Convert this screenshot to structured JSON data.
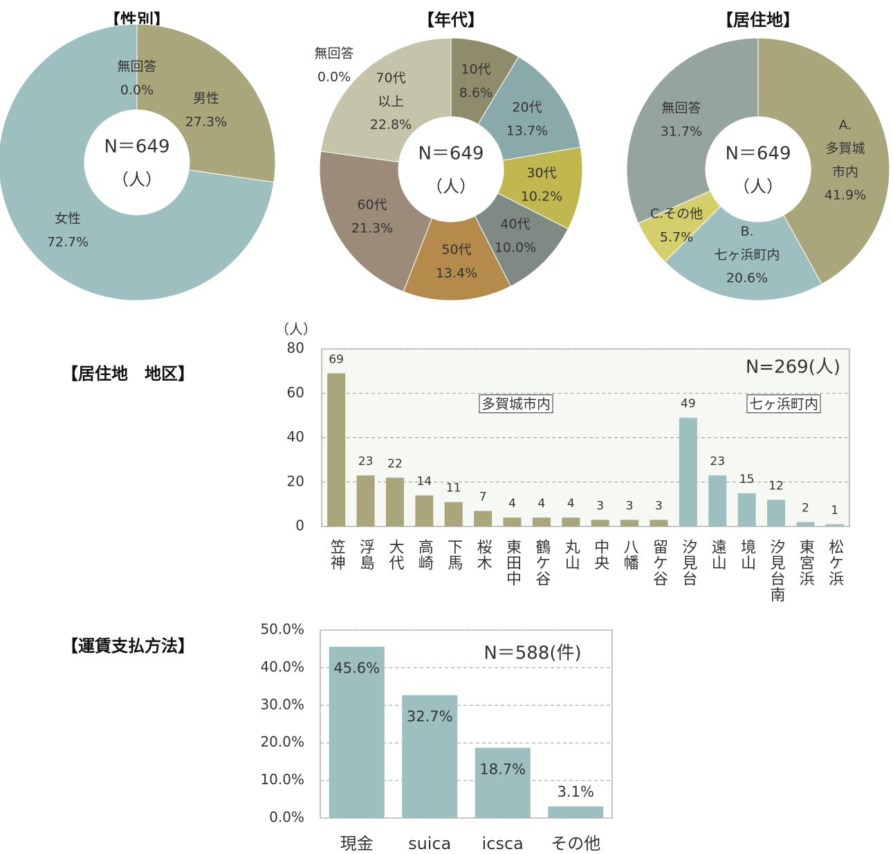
{
  "chart_data": [
    {
      "type": "donut",
      "title": "【性別】",
      "center_text": "N＝649",
      "center_unit": "（人）",
      "categories": [
        "無回答",
        "男性",
        "女性"
      ],
      "values": [
        0.0,
        27.3,
        72.7
      ],
      "value_labels": [
        "0.0%",
        "27.3%",
        "72.7%"
      ],
      "colors": [
        "#c4c3a9",
        "#aaa67c",
        "#9ebfbf"
      ]
    },
    {
      "type": "donut",
      "title": "【年代】",
      "center_text": "N＝649",
      "center_unit": "（人）",
      "categories": [
        "10代",
        "20代",
        "30代",
        "40代",
        "50代",
        "60代",
        "70代\n以上",
        "無回答"
      ],
      "values": [
        8.6,
        13.7,
        10.2,
        10.0,
        13.4,
        21.3,
        22.8,
        0.0
      ],
      "value_labels": [
        "8.6%",
        "13.7%",
        "10.2%",
        "10.0%",
        "13.4%",
        "21.3%",
        "22.8%",
        "0.0%"
      ],
      "colors": [
        "#8f8c6b",
        "#8aa9aa",
        "#c0b84f",
        "#7f8a84",
        "#b58b4c",
        "#9b8b78",
        "#c5c4aa",
        "#999999"
      ]
    },
    {
      "type": "donut",
      "title": "【居住地】",
      "center_text": "N＝649",
      "center_unit": "（人）",
      "categories": [
        "A.\n多賀城\n市内",
        "B.\n七ヶ浜町内",
        "C.その他",
        "無回答"
      ],
      "values": [
        41.9,
        20.6,
        5.7,
        31.7
      ],
      "value_labels": [
        "41.9%",
        "20.6%",
        "5.7%",
        "31.7%"
      ],
      "colors": [
        "#aaa67c",
        "#9ebfbf",
        "#d5cf6b",
        "#95a49d"
      ]
    },
    {
      "type": "bar",
      "title": "【居住地　地区】",
      "y_axis_label": "（人）",
      "annotation": "N=269(人)",
      "group_labels": [
        "多賀城市内",
        "七ヶ浜町内"
      ],
      "categories": [
        "笠神",
        "浮島",
        "大代",
        "高崎",
        "下馬",
        "桜木",
        "東田中",
        "鶴ケ谷",
        "丸山",
        "中央",
        "八幡",
        "留ケ谷",
        "汐見台",
        "遠山",
        "境山",
        "汐見台南",
        "東宮浜",
        "松ケ浜"
      ],
      "values": [
        69,
        23,
        22,
        14,
        11,
        7,
        4,
        4,
        4,
        3,
        3,
        3,
        49,
        23,
        15,
        12,
        2,
        1
      ],
      "colors": [
        "#aaa67c",
        "#aaa67c",
        "#aaa67c",
        "#aaa67c",
        "#aaa67c",
        "#aaa67c",
        "#aaa67c",
        "#aaa67c",
        "#aaa67c",
        "#aaa67c",
        "#aaa67c",
        "#aaa67c",
        "#9ebfbf",
        "#9ebfbf",
        "#9ebfbf",
        "#9ebfbf",
        "#9ebfbf",
        "#9ebfbf"
      ],
      "ylim": [
        0,
        80
      ],
      "yticks": [
        0,
        20,
        40,
        60,
        80
      ],
      "grid": true
    },
    {
      "type": "bar",
      "title": "【運賃支払方法】",
      "annotation": "N＝588(件)",
      "categories": [
        "現金",
        "suica",
        "icsca",
        "その他"
      ],
      "values": [
        45.6,
        32.7,
        18.7,
        3.1
      ],
      "value_labels": [
        "45.6%",
        "32.7%",
        "18.7%",
        "3.1%"
      ],
      "colors": [
        "#9ebfbf",
        "#9ebfbf",
        "#9ebfbf",
        "#9ebfbf"
      ],
      "ylim": [
        0,
        50
      ],
      "yticks": [
        {
          "value": 0,
          "label": "0.0%"
        },
        {
          "value": 10,
          "label": "10.0%"
        },
        {
          "value": 20,
          "label": "20.0%"
        },
        {
          "value": 30,
          "label": "30.0%"
        },
        {
          "value": 40,
          "label": "40.0%"
        },
        {
          "value": 50,
          "label": "50.0%"
        }
      ],
      "grid": true
    }
  ]
}
